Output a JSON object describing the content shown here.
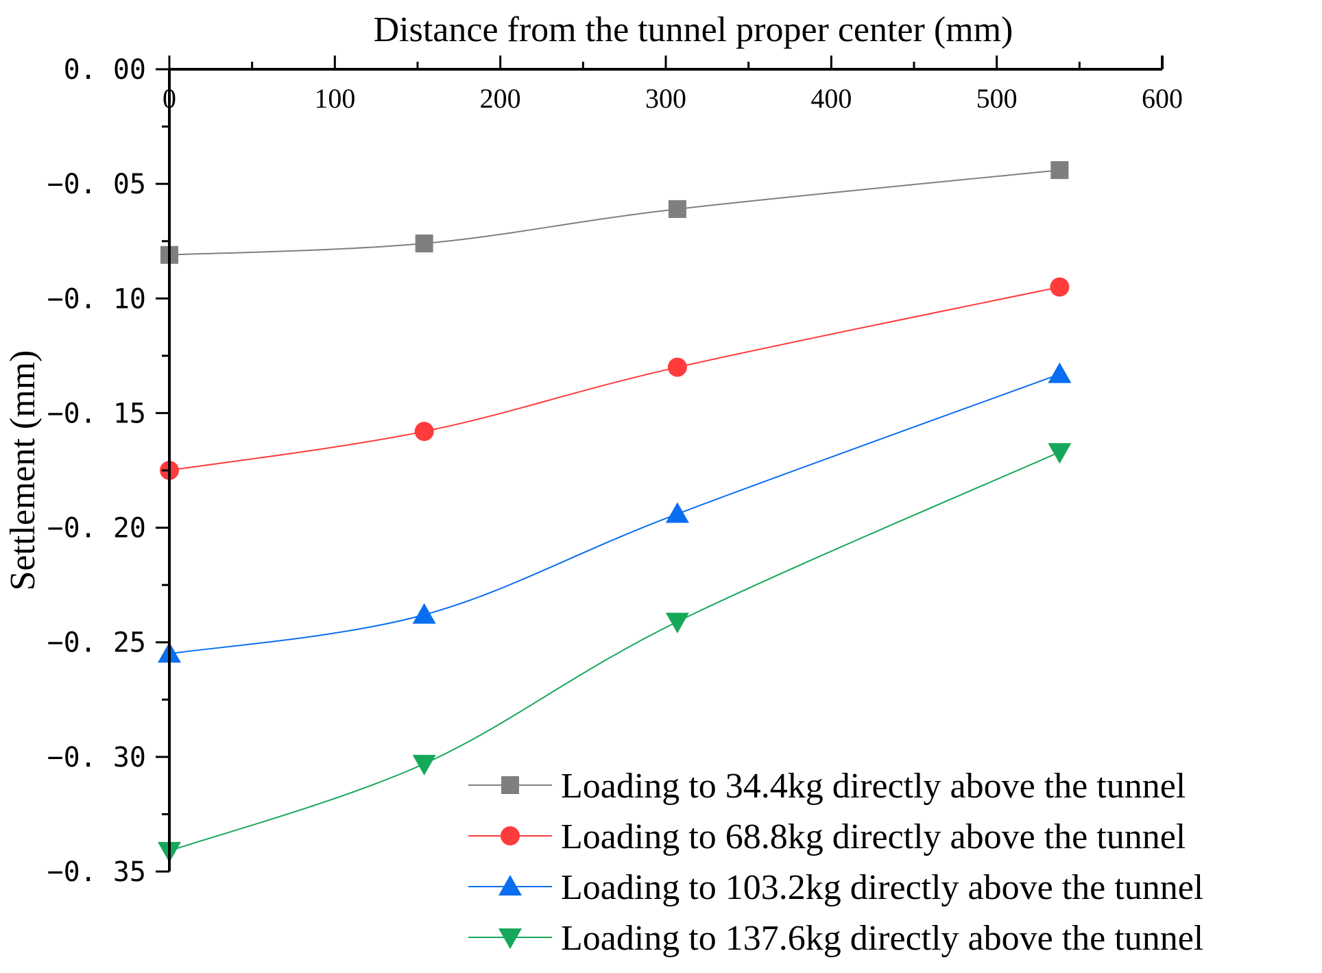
{
  "chart_data": {
    "type": "line",
    "title": "",
    "xlabel": "Distance from the tunnel proper center (mm)",
    "ylabel": "Settlement (mm)",
    "xlim": [
      0,
      600
    ],
    "ylim": [
      -0.35,
      0.0
    ],
    "x_ticks": [
      0,
      100,
      200,
      300,
      400,
      500,
      600
    ],
    "x_tick_labels": [
      "0",
      "100",
      "200",
      "300",
      "400",
      "500",
      "600"
    ],
    "y_ticks": [
      0.0,
      -0.05,
      -0.1,
      -0.15,
      -0.2,
      -0.25,
      -0.3,
      -0.35
    ],
    "y_tick_labels": [
      "0. 00",
      "−0. 05",
      "−0. 10",
      "−0. 15",
      "−0. 20",
      "−0. 25",
      "−0. 30",
      "−0. 35"
    ],
    "x_axis_position": "top",
    "grid": false,
    "legend_position": "bottom-right",
    "x": [
      0,
      154,
      307,
      538
    ],
    "series": [
      {
        "name": "Loading to 34.4kg directly above the tunnel",
        "marker": "square",
        "color": "#7f7f7f",
        "values": [
          -0.081,
          -0.076,
          -0.061,
          -0.044
        ]
      },
      {
        "name": "Loading to 68.8kg directly above the tunnel",
        "marker": "circle",
        "color": "#ff3b3b",
        "values": [
          -0.175,
          -0.158,
          -0.13,
          -0.095
        ]
      },
      {
        "name": "Loading to 103.2kg directly above the tunnel",
        "marker": "triangle-up",
        "color": "#0a6ef0",
        "values": [
          -0.255,
          -0.238,
          -0.194,
          -0.133
        ]
      },
      {
        "name": "Loading to 137.6kg directly above the tunnel",
        "marker": "triangle-down",
        "color": "#16a85a",
        "values": [
          -0.341,
          -0.303,
          -0.241,
          -0.167
        ]
      }
    ]
  }
}
